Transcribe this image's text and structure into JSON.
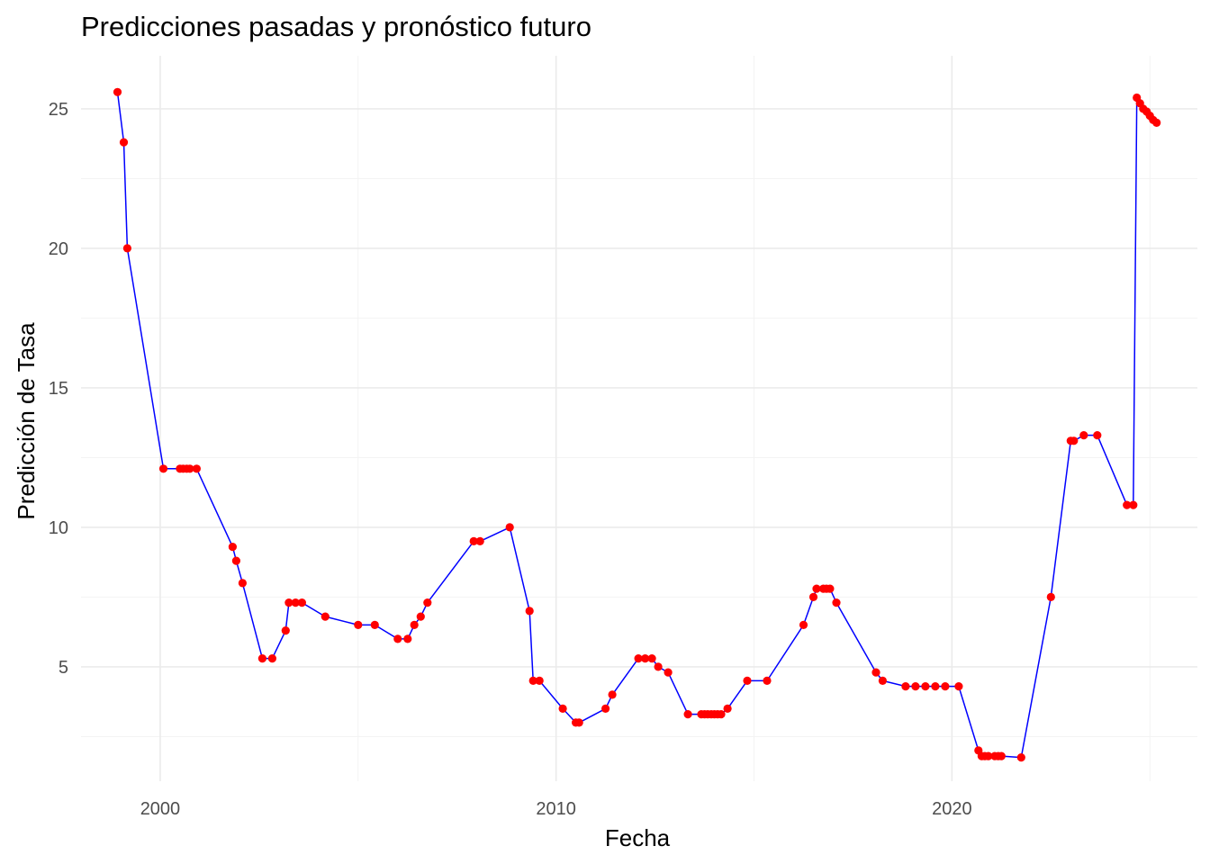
{
  "chart_data": {
    "type": "line",
    "title": "Predicciones pasadas y pronóstico futuro",
    "xlabel": "Fecha",
    "ylabel": "Predicción de Tasa",
    "xlim": [
      1998.0,
      2026.2
    ],
    "ylim": [
      0.9,
      26.9
    ],
    "x_major_ticks": [
      2000,
      2010,
      2020
    ],
    "x_minor_ticks": [
      2005,
      2015,
      2025
    ],
    "y_major_ticks": [
      5,
      10,
      15,
      20,
      25
    ],
    "y_minor_ticks": [
      2.5,
      7.5,
      12.5,
      17.5,
      22.5
    ],
    "grid": true,
    "legend": "none",
    "line_color": "#0000ff",
    "point_color": "#ff0000",
    "series": [
      {
        "points": [
          [
            1998.92,
            25.6
          ],
          [
            1999.08,
            23.8
          ],
          [
            1999.17,
            20.0
          ],
          [
            2000.08,
            12.1
          ],
          [
            2000.5,
            12.1
          ],
          [
            2000.58,
            12.1
          ],
          [
            2000.67,
            12.1
          ],
          [
            2000.75,
            12.1
          ],
          [
            2000.92,
            12.1
          ],
          [
            2001.83,
            9.3
          ],
          [
            2001.92,
            8.8
          ],
          [
            2002.08,
            8.0
          ],
          [
            2002.58,
            5.3
          ],
          [
            2002.83,
            5.3
          ],
          [
            2003.17,
            6.3
          ],
          [
            2003.25,
            7.3
          ],
          [
            2003.42,
            7.3
          ],
          [
            2003.58,
            7.3
          ],
          [
            2004.17,
            6.8
          ],
          [
            2005.0,
            6.5
          ],
          [
            2005.42,
            6.5
          ],
          [
            2006.0,
            6.0
          ],
          [
            2006.25,
            6.0
          ],
          [
            2006.42,
            6.5
          ],
          [
            2006.58,
            6.8
          ],
          [
            2006.75,
            7.3
          ],
          [
            2007.92,
            9.5
          ],
          [
            2008.08,
            9.5
          ],
          [
            2008.83,
            10.0
          ],
          [
            2009.33,
            7.0
          ],
          [
            2009.42,
            4.5
          ],
          [
            2009.58,
            4.5
          ],
          [
            2010.17,
            3.5
          ],
          [
            2010.5,
            3.0
          ],
          [
            2010.58,
            3.0
          ],
          [
            2011.25,
            3.5
          ],
          [
            2011.42,
            4.0
          ],
          [
            2012.08,
            5.3
          ],
          [
            2012.25,
            5.3
          ],
          [
            2012.42,
            5.3
          ],
          [
            2012.58,
            5.0
          ],
          [
            2012.83,
            4.8
          ],
          [
            2013.33,
            3.3
          ],
          [
            2013.67,
            3.3
          ],
          [
            2013.75,
            3.3
          ],
          [
            2013.83,
            3.3
          ],
          [
            2013.92,
            3.3
          ],
          [
            2014.0,
            3.3
          ],
          [
            2014.08,
            3.3
          ],
          [
            2014.17,
            3.3
          ],
          [
            2014.33,
            3.5
          ],
          [
            2014.83,
            4.5
          ],
          [
            2015.33,
            4.5
          ],
          [
            2016.25,
            6.5
          ],
          [
            2016.5,
            7.5
          ],
          [
            2016.58,
            7.8
          ],
          [
            2016.75,
            7.8
          ],
          [
            2016.83,
            7.8
          ],
          [
            2016.92,
            7.8
          ],
          [
            2017.08,
            7.3
          ],
          [
            2018.08,
            4.8
          ],
          [
            2018.25,
            4.5
          ],
          [
            2018.83,
            4.3
          ],
          [
            2019.08,
            4.3
          ],
          [
            2019.33,
            4.3
          ],
          [
            2019.58,
            4.3
          ],
          [
            2019.83,
            4.3
          ],
          [
            2020.17,
            4.3
          ],
          [
            2020.67,
            2.0
          ],
          [
            2020.75,
            1.8
          ],
          [
            2020.83,
            1.8
          ],
          [
            2020.92,
            1.8
          ],
          [
            2021.08,
            1.8
          ],
          [
            2021.17,
            1.8
          ],
          [
            2021.25,
            1.8
          ],
          [
            2021.75,
            1.75
          ],
          [
            2022.5,
            7.5
          ],
          [
            2023.0,
            13.1
          ],
          [
            2023.08,
            13.1
          ],
          [
            2023.33,
            13.3
          ],
          [
            2023.67,
            13.3
          ],
          [
            2024.42,
            10.8
          ],
          [
            2024.58,
            10.8
          ],
          [
            2024.67,
            25.4
          ],
          [
            2024.75,
            25.2
          ],
          [
            2024.83,
            25.0
          ],
          [
            2024.92,
            24.9
          ],
          [
            2025.0,
            24.75
          ],
          [
            2025.08,
            24.6
          ],
          [
            2025.17,
            24.5
          ]
        ]
      }
    ]
  }
}
